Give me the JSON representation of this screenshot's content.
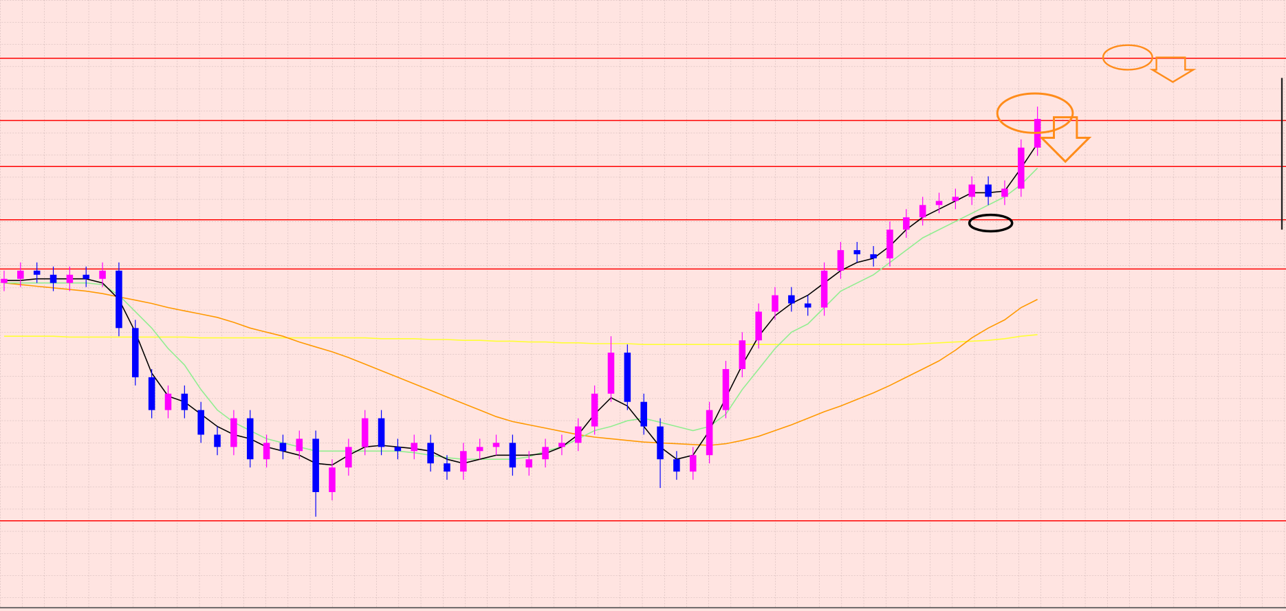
{
  "chart_data": {
    "type": "candlestick",
    "up_color": "#ff00ff",
    "down_color": "#0000ff",
    "ylim": [
      0,
      745
    ],
    "open": [
      400,
      405,
      415,
      410,
      400,
      410,
      405,
      415,
      345,
      285,
      245,
      265,
      245,
      215,
      200,
      235,
      185,
      205,
      195,
      210,
      145,
      175,
      200,
      235,
      200,
      195,
      205,
      180,
      170,
      195,
      200,
      205,
      175,
      185,
      200,
      205,
      225,
      265,
      315,
      255,
      225,
      185,
      170,
      190,
      245,
      295,
      330,
      365,
      385,
      375,
      370,
      415,
      440,
      435,
      430,
      465,
      480,
      495,
      500,
      505,
      520,
      505,
      515,
      565
    ],
    "high": [
      415,
      425,
      425,
      420,
      420,
      420,
      425,
      425,
      355,
      295,
      275,
      275,
      255,
      225,
      245,
      245,
      215,
      215,
      220,
      220,
      185,
      210,
      245,
      245,
      210,
      215,
      215,
      190,
      205,
      210,
      215,
      215,
      195,
      210,
      215,
      235,
      275,
      335,
      325,
      265,
      235,
      195,
      200,
      255,
      305,
      340,
      375,
      395,
      395,
      385,
      425,
      450,
      450,
      445,
      475,
      490,
      505,
      510,
      515,
      530,
      530,
      525,
      575,
      615
    ],
    "low": [
      390,
      395,
      400,
      390,
      390,
      395,
      395,
      335,
      275,
      235,
      235,
      235,
      205,
      190,
      190,
      175,
      175,
      185,
      185,
      115,
      135,
      165,
      190,
      190,
      185,
      185,
      170,
      160,
      160,
      185,
      190,
      165,
      165,
      175,
      190,
      195,
      215,
      255,
      245,
      215,
      150,
      160,
      160,
      180,
      235,
      285,
      320,
      355,
      365,
      360,
      360,
      405,
      425,
      420,
      420,
      455,
      470,
      485,
      490,
      495,
      495,
      495,
      505,
      555
    ],
    "close": [
      405,
      415,
      410,
      400,
      410,
      405,
      415,
      345,
      285,
      245,
      265,
      245,
      215,
      200,
      235,
      185,
      205,
      195,
      210,
      145,
      175,
      200,
      235,
      200,
      195,
      205,
      180,
      170,
      195,
      200,
      205,
      175,
      185,
      200,
      205,
      225,
      265,
      315,
      255,
      225,
      185,
      170,
      190,
      245,
      295,
      330,
      365,
      385,
      375,
      370,
      415,
      440,
      435,
      430,
      465,
      480,
      495,
      500,
      505,
      520,
      505,
      515,
      565,
      600
    ],
    "moving_averages": [
      {
        "color": "#000000",
        "values": [
          403,
          403,
          405,
          405,
          405,
          405,
          400,
          380,
          340,
          290,
          262,
          255,
          240,
          225,
          215,
          210,
          200,
          195,
          190,
          180,
          178,
          190,
          200,
          202,
          200,
          198,
          195,
          185,
          180,
          185,
          190,
          190,
          190,
          192,
          200,
          215,
          240,
          260,
          250,
          225,
          200,
          185,
          190,
          220,
          260,
          300,
          335,
          360,
          375,
          385,
          400,
          415,
          425,
          430,
          445,
          465,
          480,
          490,
          500,
          510,
          510,
          512,
          540,
          570
        ]
      },
      {
        "color": "#90ee90",
        "values": [
          400,
          400,
          400,
          400,
          400,
          400,
          398,
          385,
          365,
          345,
          320,
          300,
          270,
          245,
          230,
          220,
          210,
          205,
          200,
          195,
          195,
          195,
          195,
          195,
          195,
          193,
          190,
          187,
          185,
          185,
          185,
          185,
          188,
          195,
          200,
          210,
          220,
          225,
          232,
          235,
          230,
          225,
          220,
          225,
          240,
          270,
          295,
          320,
          340,
          350,
          370,
          390,
          400,
          410,
          425,
          440,
          455,
          465,
          475,
          485,
          495,
          505,
          520,
          540
        ]
      },
      {
        "color": "#ff9900",
        "values": [
          400,
          398,
          396,
          394,
          392,
          390,
          387,
          383,
          379,
          375,
          370,
          366,
          362,
          358,
          352,
          345,
          340,
          335,
          328,
          322,
          316,
          309,
          301,
          293,
          285,
          277,
          269,
          261,
          253,
          245,
          237,
          231,
          227,
          223,
          219,
          215,
          212,
          210,
          208,
          206,
          205,
          204,
          203,
          202,
          204,
          208,
          213,
          220,
          227,
          235,
          243,
          250,
          258,
          266,
          275,
          285,
          295,
          305,
          318,
          333,
          345,
          355,
          370,
          380
        ]
      },
      {
        "color": "#ffff33",
        "values": [
          335,
          335,
          335,
          335,
          334,
          334,
          334,
          334,
          334,
          334,
          334,
          334,
          333,
          333,
          333,
          333,
          333,
          333,
          333,
          333,
          333,
          333,
          333,
          332,
          332,
          332,
          331,
          331,
          330,
          330,
          329,
          329,
          328,
          328,
          327,
          327,
          326,
          326,
          326,
          325,
          325,
          325,
          325,
          325,
          325,
          325,
          325,
          325,
          325,
          325,
          325,
          325,
          325,
          325,
          325,
          325,
          326,
          327,
          328,
          329,
          330,
          332,
          335,
          337
        ]
      }
    ],
    "levels": {
      "color": "#ff0000",
      "values": [
        674,
        598,
        542,
        477,
        417,
        110
      ]
    }
  }
}
